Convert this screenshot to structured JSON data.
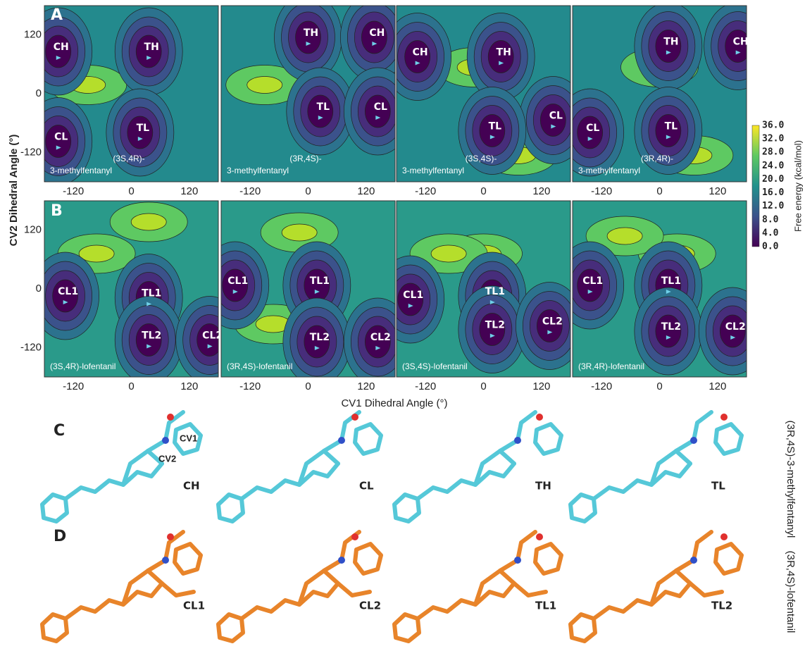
{
  "panel_letters": [
    "A",
    "B",
    "C",
    "D"
  ],
  "y_axis_title": "CV2 Dihedral Angle (°)",
  "x_axis_title": "CV1 Dihedral Angle (°)",
  "axis_ticks": [
    "-120",
    "0",
    "120"
  ],
  "row_a": [
    {
      "caption": [
        "(3S,4R)-",
        "3-methylfentanyl"
      ],
      "states": [
        "CH",
        "TH",
        "CL",
        "TL"
      ]
    },
    {
      "caption": [
        "(3R,4S)-",
        "3-methylfentanyl"
      ],
      "states": [
        "TH",
        "CH",
        "TL",
        "CL"
      ]
    },
    {
      "caption": [
        "(3S,4S)-",
        "3-methylfentanyl"
      ],
      "states": [
        "CH",
        "TH",
        "CL",
        "TL"
      ]
    },
    {
      "caption": [
        "(3R,4R)-",
        "3-methylfentanyl"
      ],
      "states": [
        "TH",
        "CH",
        "CL",
        "TL"
      ]
    }
  ],
  "row_b": [
    {
      "caption": "(3S,4R)-lofentanil",
      "states": [
        "CL1",
        "TL1",
        "TL2",
        "CL2"
      ]
    },
    {
      "caption": "(3R,4S)-lofentanil",
      "states": [
        "CL1",
        "TL1",
        "TL2",
        "CL2"
      ]
    },
    {
      "caption": "(3S,4S)-lofentanil",
      "states": [
        "CL1",
        "TL1",
        "TL2",
        "CL2"
      ]
    },
    {
      "caption": "(3R,4R)-lofentanil",
      "states": [
        "CL1",
        "TL1",
        "TL2",
        "CL2"
      ]
    }
  ],
  "colorbar": {
    "title": "Free energy (kcal/mol)",
    "ticks": [
      "36.0",
      "32.0",
      "28.0",
      "24.0",
      "20.0",
      "16.0",
      "12.0",
      "8.0",
      "4.0",
      "0.0"
    ]
  },
  "conformers_c": {
    "molecule": "(3R,4S)-3-methylfentanyl",
    "labels": [
      "CH",
      "CL",
      "TH",
      "TL"
    ],
    "cv_labels": [
      "CV1",
      "CV2"
    ]
  },
  "conformers_d": {
    "molecule": "(3R,4S)-lofentanil",
    "labels": [
      "CL1",
      "CL2",
      "TL1",
      "TL2"
    ]
  }
}
